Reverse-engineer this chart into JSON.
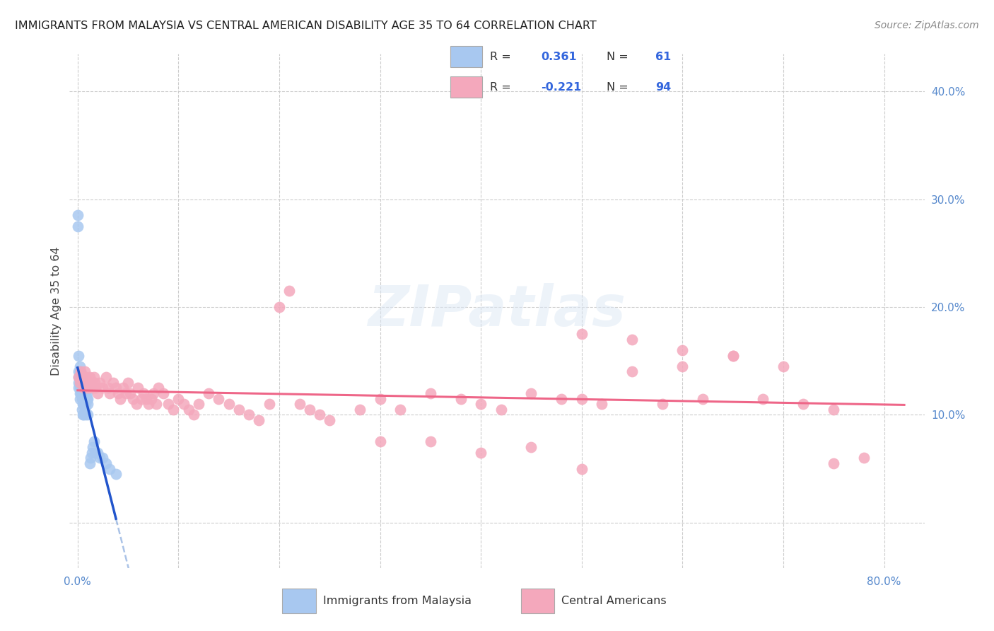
{
  "title": "IMMIGRANTS FROM MALAYSIA VS CENTRAL AMERICAN DISABILITY AGE 35 TO 64 CORRELATION CHART",
  "source": "Source: ZipAtlas.com",
  "ylabel": "Disability Age 35 to 64",
  "malaysia_R": 0.361,
  "malaysia_N": 61,
  "central_R": -0.221,
  "central_N": 94,
  "malaysia_color": "#a8c8f0",
  "central_color": "#f4a8bc",
  "malaysia_line_color": "#2255cc",
  "malaysia_dash_color": "#88aadd",
  "central_line_color": "#ee6688",
  "xlim": [
    -0.008,
    0.84
  ],
  "ylim": [
    -0.042,
    0.435
  ],
  "x_ticks": [
    0.0,
    0.1,
    0.2,
    0.3,
    0.4,
    0.5,
    0.6,
    0.7,
    0.8
  ],
  "x_tick_labels": [
    "0.0%",
    "",
    "",
    "",
    "",
    "",
    "",
    "",
    "80.0%"
  ],
  "y_ticks": [
    0.0,
    0.1,
    0.2,
    0.3,
    0.4
  ],
  "y_tick_labels_right": [
    "",
    "10.0%",
    "20.0%",
    "30.0%",
    "40.0%"
  ],
  "grid_color": "#cccccc",
  "malaysia_points_x": [
    0.0,
    0.0,
    0.001,
    0.001,
    0.001,
    0.001,
    0.001,
    0.002,
    0.002,
    0.002,
    0.002,
    0.002,
    0.002,
    0.002,
    0.003,
    0.003,
    0.003,
    0.003,
    0.003,
    0.004,
    0.004,
    0.004,
    0.004,
    0.004,
    0.004,
    0.005,
    0.005,
    0.005,
    0.005,
    0.005,
    0.005,
    0.006,
    0.006,
    0.006,
    0.006,
    0.006,
    0.007,
    0.007,
    0.007,
    0.007,
    0.008,
    0.008,
    0.008,
    0.008,
    0.009,
    0.009,
    0.01,
    0.01,
    0.01,
    0.012,
    0.013,
    0.014,
    0.015,
    0.016,
    0.018,
    0.02,
    0.022,
    0.025,
    0.028,
    0.032,
    0.038
  ],
  "malaysia_points_y": [
    0.285,
    0.275,
    0.155,
    0.14,
    0.135,
    0.13,
    0.125,
    0.145,
    0.14,
    0.135,
    0.13,
    0.125,
    0.12,
    0.115,
    0.14,
    0.135,
    0.13,
    0.125,
    0.12,
    0.135,
    0.13,
    0.125,
    0.12,
    0.115,
    0.105,
    0.13,
    0.125,
    0.12,
    0.115,
    0.11,
    0.1,
    0.125,
    0.12,
    0.115,
    0.11,
    0.1,
    0.125,
    0.12,
    0.115,
    0.105,
    0.12,
    0.115,
    0.11,
    0.1,
    0.12,
    0.115,
    0.115,
    0.11,
    0.1,
    0.055,
    0.06,
    0.065,
    0.07,
    0.075,
    0.065,
    0.065,
    0.06,
    0.06,
    0.055,
    0.05,
    0.045
  ],
  "central_points_x": [
    0.001,
    0.002,
    0.003,
    0.004,
    0.005,
    0.006,
    0.007,
    0.008,
    0.009,
    0.01,
    0.011,
    0.012,
    0.013,
    0.015,
    0.016,
    0.017,
    0.018,
    0.02,
    0.022,
    0.025,
    0.028,
    0.03,
    0.032,
    0.035,
    0.038,
    0.04,
    0.042,
    0.045,
    0.048,
    0.05,
    0.052,
    0.055,
    0.058,
    0.06,
    0.063,
    0.065,
    0.068,
    0.07,
    0.073,
    0.075,
    0.078,
    0.08,
    0.085,
    0.09,
    0.095,
    0.1,
    0.105,
    0.11,
    0.115,
    0.12,
    0.13,
    0.14,
    0.15,
    0.16,
    0.17,
    0.18,
    0.19,
    0.2,
    0.21,
    0.22,
    0.23,
    0.24,
    0.25,
    0.28,
    0.3,
    0.32,
    0.35,
    0.38,
    0.4,
    0.42,
    0.45,
    0.48,
    0.5,
    0.52,
    0.55,
    0.58,
    0.6,
    0.62,
    0.65,
    0.68,
    0.7,
    0.72,
    0.75,
    0.78,
    0.5,
    0.55,
    0.6,
    0.65,
    0.4,
    0.45,
    0.3,
    0.35,
    0.5,
    0.75
  ],
  "central_points_y": [
    0.135,
    0.13,
    0.14,
    0.135,
    0.13,
    0.125,
    0.14,
    0.135,
    0.125,
    0.13,
    0.125,
    0.135,
    0.13,
    0.125,
    0.135,
    0.13,
    0.125,
    0.12,
    0.13,
    0.125,
    0.135,
    0.125,
    0.12,
    0.13,
    0.125,
    0.12,
    0.115,
    0.125,
    0.12,
    0.13,
    0.12,
    0.115,
    0.11,
    0.125,
    0.115,
    0.12,
    0.115,
    0.11,
    0.115,
    0.12,
    0.11,
    0.125,
    0.12,
    0.11,
    0.105,
    0.115,
    0.11,
    0.105,
    0.1,
    0.11,
    0.12,
    0.115,
    0.11,
    0.105,
    0.1,
    0.095,
    0.11,
    0.2,
    0.215,
    0.11,
    0.105,
    0.1,
    0.095,
    0.105,
    0.115,
    0.105,
    0.12,
    0.115,
    0.11,
    0.105,
    0.12,
    0.115,
    0.115,
    0.11,
    0.14,
    0.11,
    0.145,
    0.115,
    0.155,
    0.115,
    0.145,
    0.11,
    0.105,
    0.06,
    0.175,
    0.17,
    0.16,
    0.155,
    0.065,
    0.07,
    0.075,
    0.075,
    0.05,
    0.055
  ]
}
